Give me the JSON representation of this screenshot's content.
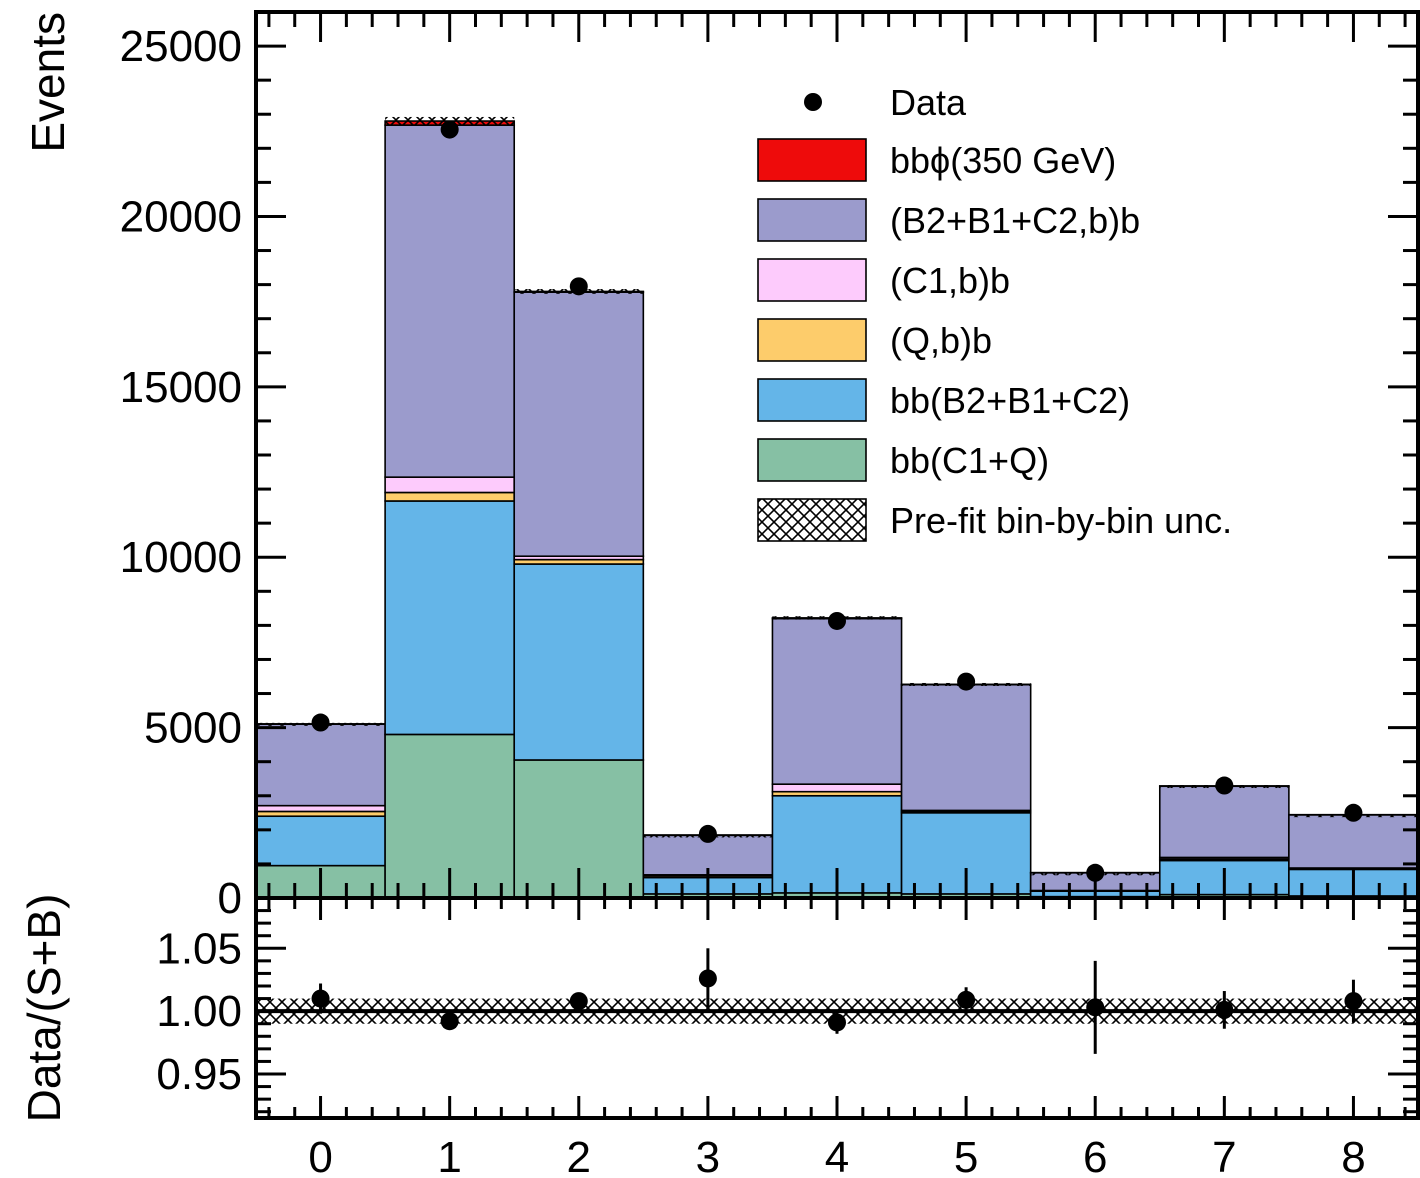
{
  "chart_data": [
    {
      "type": "bar",
      "stacked": true,
      "ylabel": "Events",
      "ylim": [
        0,
        26000
      ],
      "yticks": [
        0,
        5000,
        10000,
        15000,
        20000,
        25000
      ],
      "xlim": [
        -0.5,
        8.5
      ],
      "bins": [
        0,
        1,
        2,
        3,
        4,
        5,
        6,
        7,
        8
      ],
      "series": [
        {
          "name": "bb(C1+Q)",
          "color": "#86c0a4",
          "values": [
            950,
            4800,
            4050,
            120,
            150,
            120,
            40,
            100,
            60
          ]
        },
        {
          "name": "bb(B2+B1+C2)",
          "color": "#64b5e8",
          "values": [
            1450,
            6850,
            5750,
            480,
            2850,
            2380,
            160,
            1000,
            780
          ]
        },
        {
          "name": "(Q,b)b",
          "color": "#fdcc6b",
          "values": [
            140,
            250,
            130,
            50,
            120,
            40,
            10,
            40,
            20
          ]
        },
        {
          "name": "(C1,b)b",
          "color": "#fdcbfc",
          "values": [
            170,
            450,
            100,
            30,
            220,
            30,
            10,
            50,
            20
          ]
        },
        {
          "name": "(B2+B1+C2,b)b",
          "color": "#9b9bcc",
          "values": [
            2390,
            10330,
            7750,
            1160,
            4860,
            3690,
            520,
            2090,
            1560
          ]
        },
        {
          "name": "bbϕ(350 GeV)",
          "color": "#ee0b0b",
          "values": [
            10,
            120,
            20,
            10,
            20,
            10,
            5,
            10,
            5
          ]
        }
      ],
      "data_points": {
        "name": "Data",
        "values": [
          5150,
          22550,
          17950,
          1880,
          8130,
          6350,
          740,
          3300,
          2500
        ]
      },
      "uncertainty": {
        "name": "Pre-fit bin-by-bin unc.",
        "totals": [
          5110,
          22800,
          17800,
          1850,
          8220,
          6270,
          745,
          3290,
          2445
        ],
        "half_width": [
          30,
          120,
          70,
          15,
          50,
          40,
          10,
          25,
          15
        ]
      },
      "legend_position": "top-right"
    },
    {
      "type": "scatter",
      "ylabel": "Data/(S+B)",
      "xlim": [
        -0.5,
        8.5
      ],
      "ylim": [
        0.915,
        1.09
      ],
      "yticks": [
        0.95,
        1.0,
        1.05
      ],
      "ytick_labels": [
        "0.95",
        "1.00",
        "1.05"
      ],
      "reference_line": 1.0,
      "band_half_width": 0.01,
      "x": [
        0,
        1,
        2,
        3,
        4,
        5,
        6,
        7,
        8
      ],
      "y": [
        1.01,
        0.992,
        1.008,
        1.026,
        0.991,
        1.009,
        1.003,
        1.001,
        1.008
      ],
      "yerr": [
        0.012,
        0.005,
        0.006,
        0.024,
        0.009,
        0.01,
        0.037,
        0.015,
        0.017
      ],
      "xticks": [
        0,
        1,
        2,
        3,
        4,
        5,
        6,
        7,
        8
      ],
      "xtick_labels": [
        "0",
        "1",
        "2",
        "3",
        "4",
        "5",
        "6",
        "7",
        "8"
      ]
    }
  ]
}
